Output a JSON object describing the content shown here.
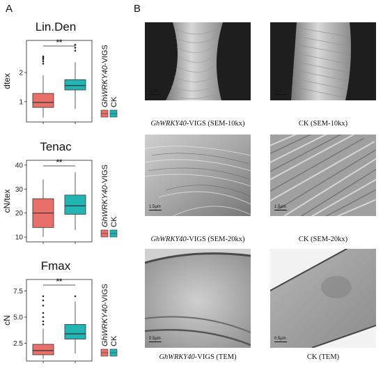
{
  "panel_a": {
    "letter": "A"
  },
  "panel_b": {
    "letter": "B"
  },
  "colors": {
    "vigs": "#E8706A",
    "ck": "#22B5B3",
    "box_edge": "#333333"
  },
  "chart_data": [
    {
      "type": "box",
      "title": "Lin.Den",
      "ylabel": "dtex",
      "ylim": [
        0.3,
        3.1
      ],
      "yticks": [
        "1",
        "2"
      ],
      "ytick_values": [
        1,
        2
      ],
      "significance": "**",
      "series": [
        {
          "name": "GhWRKY40-VIGS",
          "min": 0.45,
          "q1": 0.8,
          "median": 0.97,
          "q3": 1.28,
          "max": 1.9,
          "outliers": [
            2.3,
            2.38,
            2.45,
            2.5,
            2.55
          ]
        },
        {
          "name": "CK",
          "min": 0.75,
          "q1": 1.4,
          "median": 1.55,
          "q3": 1.75,
          "max": 2.35,
          "outliers": [
            2.75,
            2.85,
            2.95
          ]
        }
      ],
      "legend": [
        "GhWRKY40-VIGS",
        "CK"
      ]
    },
    {
      "type": "box",
      "title": "Tenac",
      "ylabel": "cN/tex",
      "ylim": [
        8,
        42
      ],
      "yticks": [
        "10",
        "20",
        "30",
        "40"
      ],
      "ytick_values": [
        10,
        20,
        30,
        40
      ],
      "significance": "**",
      "series": [
        {
          "name": "GhWRKY40-VIGS",
          "min": 10,
          "q1": 14,
          "median": 20,
          "q3": 26,
          "max": 34,
          "outliers": []
        },
        {
          "name": "CK",
          "min": 13,
          "q1": 19.5,
          "median": 23,
          "q3": 27.5,
          "max": 37,
          "outliers": []
        }
      ],
      "legend": [
        "GhWRKY40-VIGS",
        "CK"
      ]
    },
    {
      "type": "box",
      "title": "Fmax",
      "ylabel": "cN",
      "ylim": [
        0.8,
        8.6
      ],
      "yticks": [
        "2.5",
        "5.0",
        "7.5"
      ],
      "ytick_values": [
        2.5,
        5.0,
        7.5
      ],
      "significance": "**",
      "series": [
        {
          "name": "GhWRKY40-VIGS",
          "min": 1.0,
          "q1": 1.4,
          "median": 1.8,
          "q3": 2.4,
          "max": 3.9,
          "outliers": [
            4.3,
            4.6,
            5.0,
            5.4,
            6.1,
            6.6,
            7.0
          ]
        },
        {
          "name": "CK",
          "min": 1.5,
          "q1": 2.9,
          "median": 3.4,
          "q3": 4.3,
          "max": 6.5,
          "outliers": [
            7.0
          ]
        }
      ],
      "legend": [
        "GhWRKY40-VIGS",
        "CK"
      ]
    }
  ],
  "micrographs": [
    {
      "id": "vigs-sem10",
      "caption_gene": "GhWRKY40",
      "caption_rest": "-VIGS (SEM-10kx)",
      "scale": "1μm"
    },
    {
      "id": "ck-sem10",
      "caption_gene": "",
      "caption_rest": "CK (SEM-10kx)",
      "scale": "1μm"
    },
    {
      "id": "vigs-sem20",
      "caption_gene": "GhWRKY40",
      "caption_rest": "-VIGS (SEM-20kx)",
      "scale": "1.5μm"
    },
    {
      "id": "ck-sem20",
      "caption_gene": "",
      "caption_rest": "CK (SEM-20kx)",
      "scale": "1.5μm"
    },
    {
      "id": "vigs-tem",
      "caption_gene": "GhWRKY40",
      "caption_rest": "-VIGS (TEM)",
      "scale": "0.5μm"
    },
    {
      "id": "ck-tem",
      "caption_gene": "",
      "caption_rest": "CK (TEM)",
      "scale": "0.5μm"
    }
  ]
}
